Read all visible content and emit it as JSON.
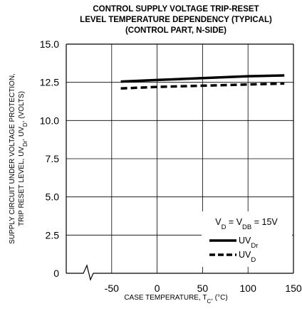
{
  "chart_data": {
    "type": "line",
    "title": [
      "CONTROL SUPPLY VOLTAGE TRIP-RESET",
      "LEVEL TEMPERATURE DEPENDENCY (TYPICAL)",
      "(CONTROL PART, N-SIDE)"
    ],
    "xlabel": {
      "text": "CASE TEMPERATURE, T",
      "sub": "C",
      "suffix": ", (°C)"
    },
    "ylabel": {
      "line1": "SUPPLY CIRCUIT UNDER VOLTAGE PROTECTION,",
      "line2_pre": "TRIP RESET LEVEL, UV",
      "line2_sub1": "Dr",
      "line2_mid": ", UV",
      "line2_sub2": "D",
      "line2_post": ", (VOLTS)"
    },
    "x_ticks": [
      -50,
      0,
      50,
      100,
      150
    ],
    "x_tick_labels": [
      "-50",
      "0",
      "50",
      "100",
      "150"
    ],
    "xlim": [
      -100,
      150
    ],
    "x_axis_break": true,
    "y_ticks": [
      0,
      2.5,
      5.0,
      7.5,
      10.0,
      12.5,
      15.0
    ],
    "y_tick_labels": [
      "0",
      "2.5",
      "5.0",
      "7.5",
      "10.0",
      "12.5",
      "15.0"
    ],
    "ylim": [
      0,
      15
    ],
    "grid": true,
    "legend": {
      "placement": "bottom-right",
      "heading": {
        "pre": "V",
        "sub1": "D",
        "mid": " = V",
        "sub2": "DB",
        "post": " = 15V"
      },
      "entries": [
        {
          "pre": "UV",
          "sub": "Dr",
          "style": "solid"
        },
        {
          "pre": "UV",
          "sub": "D",
          "style": "dashed"
        }
      ]
    },
    "series": [
      {
        "name": "UVDr",
        "style": "solid",
        "x": [
          -40,
          0,
          50,
          100,
          140
        ],
        "y": [
          12.55,
          12.65,
          12.78,
          12.9,
          12.95
        ]
      },
      {
        "name": "UVD",
        "style": "dashed",
        "x": [
          -40,
          0,
          50,
          100,
          140
        ],
        "y": [
          12.1,
          12.2,
          12.28,
          12.36,
          12.42
        ]
      }
    ]
  }
}
